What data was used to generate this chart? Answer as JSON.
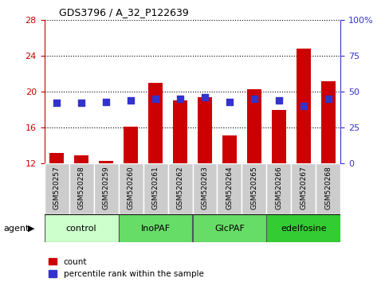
{
  "title": "GDS3796 / A_32_P122639",
  "samples": [
    "GSM520257",
    "GSM520258",
    "GSM520259",
    "GSM520260",
    "GSM520261",
    "GSM520262",
    "GSM520263",
    "GSM520264",
    "GSM520265",
    "GSM520266",
    "GSM520267",
    "GSM520268"
  ],
  "count_values": [
    13.2,
    12.9,
    12.3,
    16.1,
    21.0,
    19.0,
    19.4,
    15.1,
    20.3,
    18.0,
    24.8,
    21.2
  ],
  "percentile_values": [
    42,
    42,
    43,
    44,
    45,
    45,
    46,
    43,
    45,
    44,
    40,
    45
  ],
  "bar_color": "#cc0000",
  "dot_color": "#3333cc",
  "ylim_left": [
    12,
    28
  ],
  "ylim_right": [
    0,
    100
  ],
  "yticks_left": [
    12,
    16,
    20,
    24,
    28
  ],
  "yticks_right": [
    0,
    25,
    50,
    75,
    100
  ],
  "yticklabels_right": [
    "0",
    "25",
    "50",
    "75",
    "100%"
  ],
  "group_info": [
    {
      "label": "control",
      "indices": [
        0,
        1,
        2
      ],
      "color": "#ccffcc"
    },
    {
      "label": "InoPAF",
      "indices": [
        3,
        4,
        5
      ],
      "color": "#66dd66"
    },
    {
      "label": "GlcPAF",
      "indices": [
        6,
        7,
        8
      ],
      "color": "#66dd66"
    },
    {
      "label": "edelfosine",
      "indices": [
        9,
        10,
        11
      ],
      "color": "#33cc33"
    }
  ],
  "legend_count": "count",
  "legend_pct": "percentile rank within the sample",
  "xlabel_agent": "agent",
  "bar_width": 0.6,
  "dot_size": 35,
  "col_bg_color": "#cccccc",
  "plot_bg_color": "#f0f0f0"
}
